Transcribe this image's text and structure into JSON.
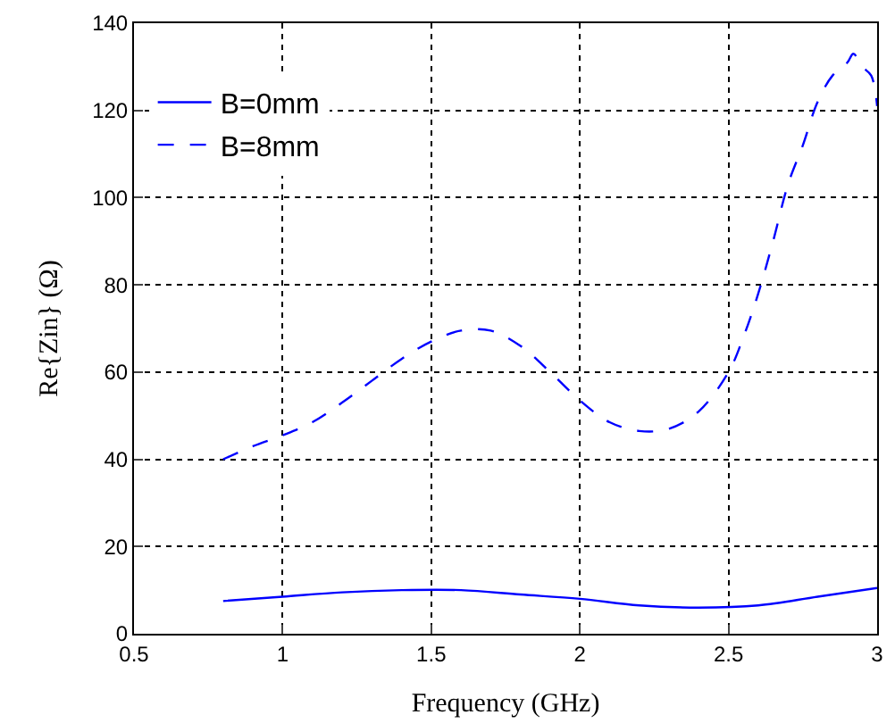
{
  "chart_data": {
    "type": "line",
    "xlabel": "Frequency (GHz)",
    "ylabel": "Re{Zin} (Ω)",
    "xlim": [
      0.5,
      3
    ],
    "xticks": [
      0.5,
      1,
      1.5,
      2,
      2.5,
      3
    ],
    "ylim": [
      0,
      140
    ],
    "yticks": [
      0,
      20,
      40,
      60,
      80,
      100,
      120,
      140
    ],
    "grid": true,
    "legend": "top left",
    "series": [
      {
        "name": "B=0mm",
        "color": "#0000ff",
        "line_style": "solid",
        "x": [
          0.8,
          1.0,
          1.2,
          1.4,
          1.6,
          1.8,
          2.0,
          2.2,
          2.4,
          2.6,
          2.8,
          3.0
        ],
        "values": [
          7.5,
          8.5,
          9.5,
          10,
          10,
          9,
          8,
          6.5,
          6,
          6.5,
          8.5,
          10.5
        ]
      },
      {
        "name": "B=8mm",
        "color": "#0000ff",
        "line_style": "dashed",
        "x": [
          0.8,
          0.9,
          1.0,
          1.1,
          1.2,
          1.3,
          1.4,
          1.5,
          1.6,
          1.7,
          1.8,
          1.9,
          2.0,
          2.1,
          2.2,
          2.3,
          2.4,
          2.5,
          2.55,
          2.6,
          2.65,
          2.7,
          2.75,
          2.8,
          2.85,
          2.9,
          2.92,
          2.95,
          2.98,
          3.0
        ],
        "values": [
          40,
          43,
          45.5,
          48.5,
          53,
          58,
          63,
          67,
          69.5,
          69.5,
          66,
          60,
          53.5,
          48.5,
          46.5,
          47,
          51,
          60,
          68,
          78,
          90,
          103,
          112,
          122,
          128,
          131,
          133,
          130,
          128,
          121
        ]
      }
    ]
  }
}
